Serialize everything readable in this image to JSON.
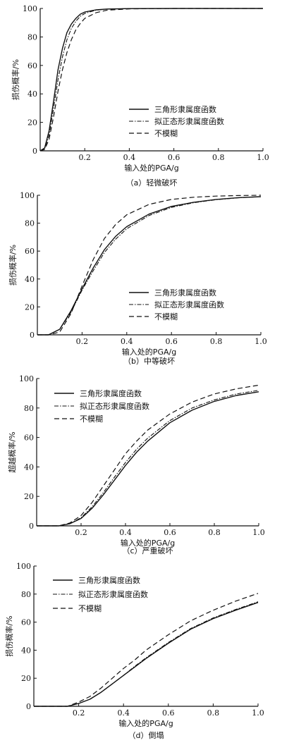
{
  "legend": {
    "triangle": "三角形隶属度函数",
    "normal": "拟正态形隶属度函数",
    "none": "不模糊"
  },
  "chart_data": [
    {
      "type": "line",
      "caption": "（a）轻微破坏",
      "xlabel": "输入处的PGA/g",
      "ylabel": "损伤概率/%",
      "xlim": [
        0,
        1.0
      ],
      "ylim": [
        0,
        100
      ],
      "xticks": [
        "0.2",
        "0.4",
        "0.6",
        "0.8",
        "1.0"
      ],
      "yticks": [
        "0",
        "20",
        "40",
        "60",
        "80",
        "100"
      ],
      "legend_position": "center-right",
      "series": [
        {
          "name": "三角形隶属度函数",
          "style": "solid",
          "points": [
            [
              0,
              0
            ],
            [
              0.02,
              2
            ],
            [
              0.04,
              14
            ],
            [
              0.06,
              35
            ],
            [
              0.08,
              57
            ],
            [
              0.1,
              72
            ],
            [
              0.12,
              83
            ],
            [
              0.14,
              89
            ],
            [
              0.16,
              93
            ],
            [
              0.18,
              96
            ],
            [
              0.2,
              97.5
            ],
            [
              0.25,
              99
            ],
            [
              0.3,
              99.6
            ],
            [
              0.4,
              99.9
            ],
            [
              0.6,
              100
            ],
            [
              1.0,
              100
            ]
          ]
        },
        {
          "name": "拟正态形隶属度函数",
          "style": "dashdot",
          "points": [
            [
              0,
              0
            ],
            [
              0.02,
              1.5
            ],
            [
              0.04,
              11
            ],
            [
              0.06,
              30
            ],
            [
              0.08,
              50
            ],
            [
              0.1,
              66
            ],
            [
              0.12,
              78
            ],
            [
              0.14,
              86
            ],
            [
              0.16,
              91
            ],
            [
              0.18,
              94.5
            ],
            [
              0.2,
              96.5
            ],
            [
              0.25,
              98.8
            ],
            [
              0.3,
              99.5
            ],
            [
              0.4,
              99.9
            ],
            [
              0.6,
              100
            ],
            [
              1.0,
              100
            ]
          ]
        },
        {
          "name": "不模糊",
          "style": "dashed",
          "points": [
            [
              0,
              0
            ],
            [
              0.02,
              1
            ],
            [
              0.04,
              8
            ],
            [
              0.06,
              24
            ],
            [
              0.08,
              42
            ],
            [
              0.1,
              57
            ],
            [
              0.12,
              69
            ],
            [
              0.14,
              78
            ],
            [
              0.16,
              85
            ],
            [
              0.18,
              89.5
            ],
            [
              0.2,
              93
            ],
            [
              0.25,
              97
            ],
            [
              0.3,
              98.8
            ],
            [
              0.4,
              99.7
            ],
            [
              0.6,
              100
            ],
            [
              1.0,
              100
            ]
          ]
        }
      ]
    },
    {
      "type": "line",
      "caption": "（b）中等破坏",
      "xlabel": "输入处的PGA/g",
      "ylabel": "损伤概率/%",
      "xlim": [
        0,
        1.0
      ],
      "ylim": [
        0,
        100
      ],
      "xticks": [
        "0.2",
        "0.4",
        "0.6",
        "0.8",
        "1.0"
      ],
      "yticks": [
        "0",
        "20",
        "40",
        "60",
        "80",
        "100"
      ],
      "legend_position": "bottom-right",
      "series": [
        {
          "name": "三角形隶属度函数",
          "style": "solid",
          "points": [
            [
              0,
              0
            ],
            [
              0.05,
              0
            ],
            [
              0.1,
              4
            ],
            [
              0.15,
              17
            ],
            [
              0.2,
              33
            ],
            [
              0.25,
              48
            ],
            [
              0.3,
              61
            ],
            [
              0.35,
              70.5
            ],
            [
              0.4,
              77.5
            ],
            [
              0.5,
              86.5
            ],
            [
              0.6,
              92
            ],
            [
              0.7,
              95
            ],
            [
              0.8,
              97
            ],
            [
              0.9,
              98.3
            ],
            [
              1.0,
              99
            ]
          ]
        },
        {
          "name": "拟正态形隶属度函数",
          "style": "dashdot",
          "points": [
            [
              0,
              0
            ],
            [
              0.05,
              0
            ],
            [
              0.1,
              4
            ],
            [
              0.15,
              16
            ],
            [
              0.2,
              32
            ],
            [
              0.25,
              46
            ],
            [
              0.3,
              59
            ],
            [
              0.35,
              68.5
            ],
            [
              0.4,
              76
            ],
            [
              0.5,
              85.5
            ],
            [
              0.6,
              91.3
            ],
            [
              0.7,
              94.7
            ],
            [
              0.8,
              96.8
            ],
            [
              0.9,
              98.2
            ],
            [
              1.0,
              99
            ]
          ]
        },
        {
          "name": "不模糊",
          "style": "dashed",
          "points": [
            [
              0,
              0
            ],
            [
              0.05,
              0
            ],
            [
              0.1,
              2
            ],
            [
              0.15,
              15
            ],
            [
              0.2,
              35
            ],
            [
              0.25,
              54
            ],
            [
              0.3,
              69
            ],
            [
              0.35,
              79
            ],
            [
              0.4,
              86
            ],
            [
              0.5,
              93.5
            ],
            [
              0.6,
              97
            ],
            [
              0.7,
              98.6
            ],
            [
              0.8,
              99.4
            ],
            [
              0.9,
              99.8
            ],
            [
              1.0,
              100
            ]
          ]
        }
      ]
    },
    {
      "type": "line",
      "caption": "（c）严重破坏",
      "xlabel": "输入处的PGA/g",
      "ylabel": "超越概率/%",
      "xlim": [
        0,
        1.0
      ],
      "ylim": [
        0,
        100
      ],
      "xticks": [
        "0.2",
        "0.4",
        "0.6",
        "0.8",
        "1.0"
      ],
      "yticks": [
        "0",
        "20",
        "40",
        "60",
        "80",
        "100"
      ],
      "legend_position": "top-left",
      "series": [
        {
          "name": "三角形隶属度函数",
          "style": "solid",
          "points": [
            [
              0,
              0
            ],
            [
              0.1,
              0
            ],
            [
              0.15,
              1.5
            ],
            [
              0.2,
              5
            ],
            [
              0.25,
              12
            ],
            [
              0.3,
              21
            ],
            [
              0.35,
              31
            ],
            [
              0.4,
              41
            ],
            [
              0.45,
              50
            ],
            [
              0.5,
              57.5
            ],
            [
              0.6,
              70
            ],
            [
              0.7,
              78.5
            ],
            [
              0.8,
              84.5
            ],
            [
              0.9,
              88.5
            ],
            [
              1.0,
              91
            ]
          ]
        },
        {
          "name": "拟正态形隶属度函数",
          "style": "dashdot",
          "points": [
            [
              0,
              0
            ],
            [
              0.1,
              0
            ],
            [
              0.15,
              1.5
            ],
            [
              0.2,
              5.5
            ],
            [
              0.25,
              13
            ],
            [
              0.3,
              22.5
            ],
            [
              0.35,
              33
            ],
            [
              0.4,
              43
            ],
            [
              0.45,
              52
            ],
            [
              0.5,
              59.5
            ],
            [
              0.6,
              71.5
            ],
            [
              0.7,
              80
            ],
            [
              0.8,
              85.5
            ],
            [
              0.9,
              89.5
            ],
            [
              1.0,
              92
            ]
          ]
        },
        {
          "name": "不模糊",
          "style": "dashed",
          "points": [
            [
              0,
              0
            ],
            [
              0.1,
              0
            ],
            [
              0.15,
              2
            ],
            [
              0.2,
              7
            ],
            [
              0.25,
              16
            ],
            [
              0.3,
              27
            ],
            [
              0.35,
              38
            ],
            [
              0.4,
              49
            ],
            [
              0.45,
              57.5
            ],
            [
              0.5,
              65
            ],
            [
              0.6,
              76
            ],
            [
              0.7,
              84
            ],
            [
              0.8,
              89.5
            ],
            [
              0.9,
              93
            ],
            [
              1.0,
              95.5
            ]
          ]
        }
      ]
    },
    {
      "type": "line",
      "caption": "（d）倒塌",
      "xlabel": "输入处的PGA/g",
      "ylabel": "损伤概率/%",
      "xlim": [
        0,
        1.0
      ],
      "ylim": [
        0,
        100
      ],
      "xticks": [
        "0.2",
        "0.4",
        "0.6",
        "0.8",
        "1.0"
      ],
      "yticks": [
        "0",
        "20",
        "40",
        "60",
        "80",
        "100"
      ],
      "legend_position": "top-center",
      "series": [
        {
          "name": "三角形隶属度函数",
          "style": "solid",
          "points": [
            [
              0,
              0
            ],
            [
              0.15,
              0
            ],
            [
              0.2,
              2
            ],
            [
              0.25,
              5
            ],
            [
              0.3,
              10
            ],
            [
              0.35,
              16
            ],
            [
              0.4,
              22
            ],
            [
              0.45,
              28
            ],
            [
              0.5,
              34
            ],
            [
              0.6,
              45
            ],
            [
              0.7,
              55
            ],
            [
              0.8,
              62.5
            ],
            [
              0.9,
              68.5
            ],
            [
              1.0,
              74
            ]
          ]
        },
        {
          "name": "拟正态形隶属度函数",
          "style": "dashdot",
          "points": [
            [
              0,
              0
            ],
            [
              0.15,
              0
            ],
            [
              0.2,
              2
            ],
            [
              0.25,
              5
            ],
            [
              0.3,
              10
            ],
            [
              0.35,
              16
            ],
            [
              0.4,
              22
            ],
            [
              0.45,
              28.5
            ],
            [
              0.5,
              34.5
            ],
            [
              0.6,
              45.5
            ],
            [
              0.7,
              55.5
            ],
            [
              0.8,
              63
            ],
            [
              0.9,
              69
            ],
            [
              1.0,
              74.5
            ]
          ]
        },
        {
          "name": "不模糊",
          "style": "dashed",
          "points": [
            [
              0,
              0
            ],
            [
              0.15,
              0
            ],
            [
              0.2,
              3
            ],
            [
              0.25,
              7
            ],
            [
              0.3,
              13
            ],
            [
              0.35,
              20
            ],
            [
              0.4,
              27
            ],
            [
              0.45,
              33
            ],
            [
              0.5,
              40
            ],
            [
              0.6,
              51
            ],
            [
              0.7,
              61
            ],
            [
              0.8,
              68.5
            ],
            [
              0.9,
              75
            ],
            [
              1.0,
              80.5
            ]
          ]
        }
      ]
    }
  ]
}
